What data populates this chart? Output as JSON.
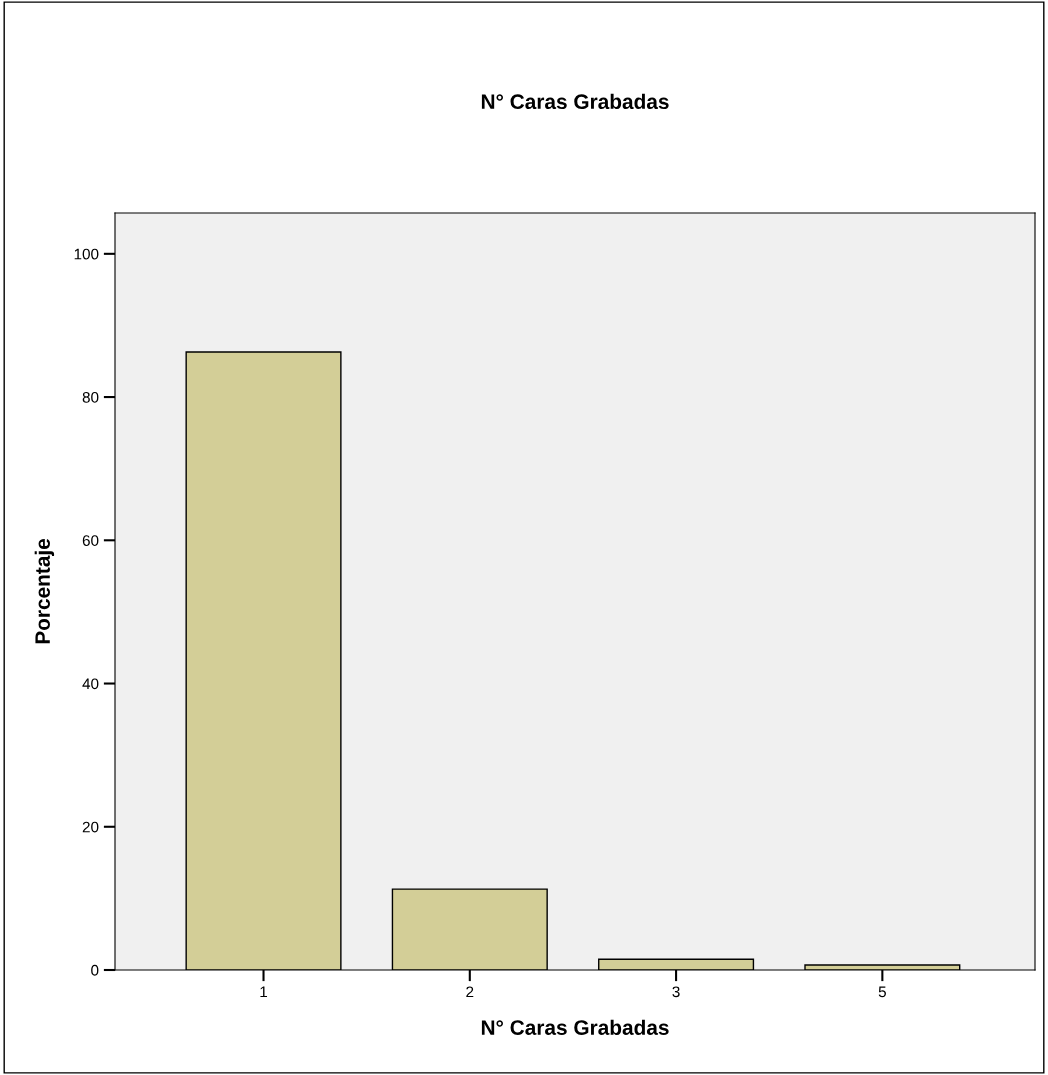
{
  "chart_data": {
    "type": "bar",
    "title": "N° Caras Grabadas",
    "xlabel": "N° Caras Grabadas",
    "ylabel": "Porcentaje",
    "categories": [
      "1",
      "2",
      "3",
      "5"
    ],
    "values": [
      86.3,
      11.3,
      1.5,
      0.7
    ],
    "color": "#d3ce97",
    "ylim": [
      0,
      105.7
    ],
    "yticks": [
      0,
      20,
      40,
      60,
      80,
      100
    ],
    "grid": false,
    "legend": false
  }
}
